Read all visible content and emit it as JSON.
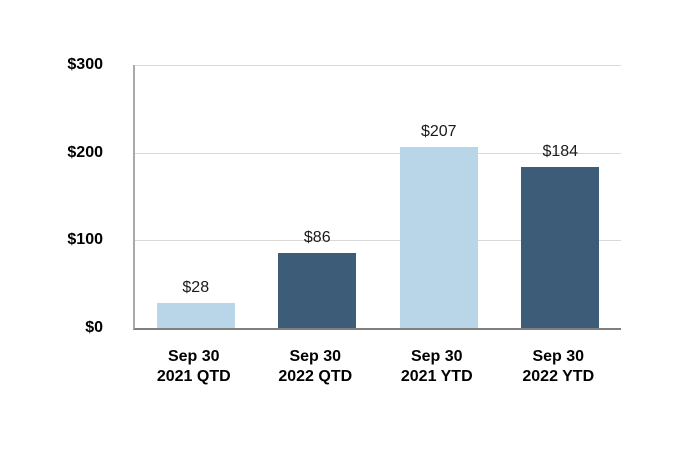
{
  "chart_data": {
    "type": "bar",
    "title": "",
    "categories": [
      "Sep 30 2021 QTD",
      "Sep 30 2022 QTD",
      "Sep 30 2021 YTD",
      "Sep 30 2022 YTD"
    ],
    "category_lines": [
      [
        "Sep 30",
        "2021 QTD"
      ],
      [
        "Sep 30",
        "2022 QTD"
      ],
      [
        "Sep 30",
        "2021 YTD"
      ],
      [
        "Sep 30",
        "2022 YTD"
      ]
    ],
    "values": [
      28,
      86,
      207,
      184
    ],
    "data_labels": [
      "$28",
      "$86",
      "$207",
      "$184"
    ],
    "bar_colors": [
      "#B9D5E8",
      "#3D5C78",
      "#B9D5E8",
      "#3D5C78"
    ],
    "y_axis": {
      "min": 0,
      "max": 300,
      "ticks": [
        {
          "value": 0,
          "label": "$0"
        },
        {
          "value": 100,
          "label": "$100"
        },
        {
          "value": 200,
          "label": "$200"
        },
        {
          "value": 300,
          "label": "$300"
        }
      ]
    },
    "grid": true,
    "legend": "none",
    "colors": {
      "light_blue": "#B9D5E8",
      "dark_blue": "#3D5C78",
      "gridline": "#D9D9D9",
      "y_axis_line": "#A9A9A9",
      "x_axis_line": "#7F7F7F",
      "label_text": "#1A1A1A",
      "axis_text": "#000000"
    }
  }
}
